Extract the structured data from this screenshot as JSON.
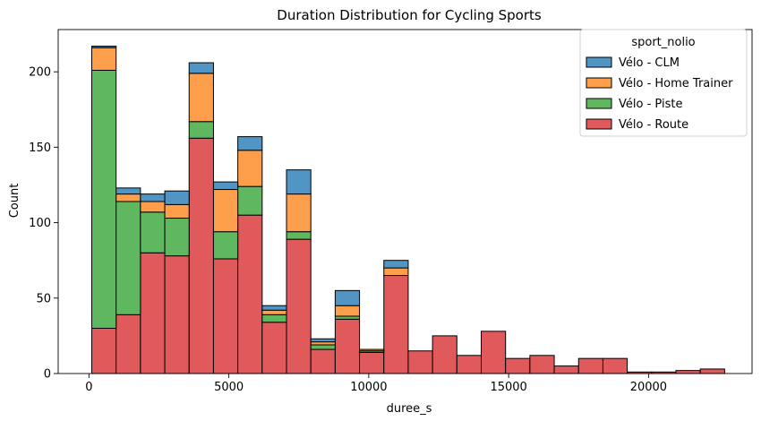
{
  "chart_data": {
    "type": "bar",
    "title": "Duration Distribution for Cycling Sports",
    "xlabel": "duree_s",
    "ylabel": "Count",
    "xlim": [
      -1100,
      23700
    ],
    "ylim": [
      0,
      228
    ],
    "xticks": [
      0,
      5000,
      10000,
      15000,
      20000
    ],
    "yticks": [
      0,
      50,
      100,
      150,
      200
    ],
    "bin_start": 100,
    "bin_width": 870,
    "stacked": true,
    "legend": {
      "title": "sport_nolio",
      "placement": "top-right"
    },
    "series": [
      {
        "name": "Vélo - Route",
        "color": "#e05a5b",
        "values": [
          30,
          39,
          80,
          78,
          156,
          76,
          105,
          34,
          89,
          16,
          36,
          14,
          65,
          15,
          25,
          12,
          28,
          10,
          12,
          5,
          10,
          10,
          1,
          1,
          2,
          3
        ]
      },
      {
        "name": "Vélo - Piste",
        "color": "#5fb860",
        "values": [
          171,
          75,
          27,
          25,
          11,
          18,
          19,
          5,
          5,
          3,
          2,
          1,
          0,
          0,
          0,
          0,
          0,
          0,
          0,
          0,
          0,
          0,
          0,
          0,
          0,
          0
        ]
      },
      {
        "name": "Vélo - Home Trainer",
        "color": "#fd9e4b",
        "values": [
          15,
          5,
          7,
          9,
          32,
          28,
          24,
          3,
          25,
          2,
          7,
          1,
          5,
          0,
          0,
          0,
          0,
          0,
          0,
          0,
          0,
          0,
          0,
          0,
          0,
          0
        ]
      },
      {
        "name": "Vélo - CLM",
        "color": "#5195c4",
        "values": [
          1,
          4,
          5,
          9,
          7,
          5,
          9,
          3,
          16,
          2,
          10,
          0,
          5,
          0,
          0,
          0,
          0,
          0,
          0,
          0,
          0,
          0,
          0,
          0,
          0,
          0
        ]
      }
    ],
    "legend_order": [
      "Vélo - CLM",
      "Vélo - Home Trainer",
      "Vélo - Piste",
      "Vélo - Route"
    ]
  }
}
